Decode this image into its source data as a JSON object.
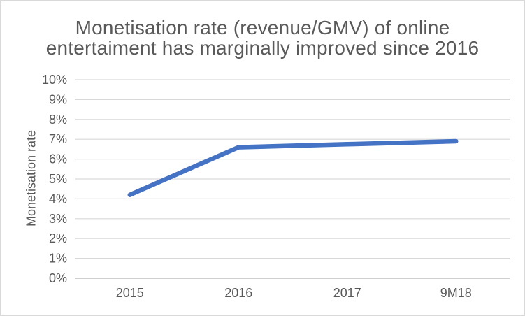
{
  "chart_data": {
    "type": "line",
    "title": "Monetisation rate (revenue/GMV) of online entertaiment has marginally improved since 2016",
    "title_lines": [
      "Monetisation rate (revenue/GMV) of online",
      "entertaiment has marginally improved since 2016"
    ],
    "xlabel": "",
    "ylabel": "Monetisation rate",
    "categories": [
      "2015",
      "2016",
      "2017",
      "9M18"
    ],
    "series": [
      {
        "name": "Monetisation rate",
        "values": [
          4.2,
          6.6,
          6.75,
          6.9
        ]
      }
    ],
    "unit": "%",
    "ylim": [
      0,
      10
    ],
    "ytick_step": 1,
    "ytick_labels": [
      "0%",
      "1%",
      "2%",
      "3%",
      "4%",
      "5%",
      "6%",
      "7%",
      "8%",
      "9%",
      "10%"
    ],
    "grid": true,
    "legend": "none",
    "colors": {
      "line": "#4472C4",
      "gridline": "#D9D9D9",
      "axis_line": "#BFBFBF",
      "text": "#595959",
      "border": "#D9D9D9",
      "background": "#FFFFFF"
    }
  }
}
